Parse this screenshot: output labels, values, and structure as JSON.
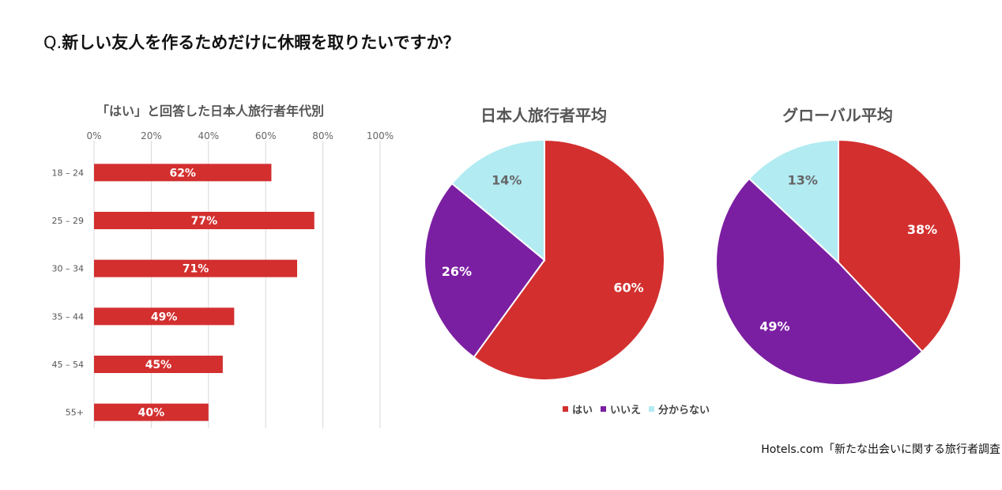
{
  "question": {
    "prefix": "Q.",
    "text": "新しい友人を作るためだけに休暇を取りたいですか？"
  },
  "colors": {
    "yes": "#d32f2f",
    "no": "#7b1fa2",
    "unknown": "#b2ebf2",
    "grid": "#d9d9d9",
    "tick": "#666666"
  },
  "legend": [
    {
      "label": "はい",
      "color": "#d32f2f"
    },
    {
      "label": "いいえ",
      "color": "#7b1fa2"
    },
    {
      "label": "分からない",
      "color": "#b2ebf2"
    }
  ],
  "source": "Hotels.com「新たな出会いに関する旅行者調査",
  "chart_data": [
    {
      "type": "bar",
      "orientation": "horizontal",
      "title": "「はい」と回答した日本人旅行者年代別",
      "categories": [
        "18 – 24",
        "25 – 29",
        "30 – 34",
        "35 – 44",
        "45 – 54",
        "55+"
      ],
      "values": [
        62,
        77,
        71,
        49,
        45,
        40
      ],
      "value_labels": [
        "62%",
        "77%",
        "71%",
        "49%",
        "45%",
        "40%"
      ],
      "xlim": [
        0,
        100
      ],
      "ticks": [
        0,
        20,
        40,
        60,
        80,
        100
      ],
      "tick_labels": [
        "0%",
        "20%",
        "40%",
        "60%",
        "80%",
        "100%"
      ],
      "grid": true,
      "series_color": "#d32f2f"
    },
    {
      "type": "pie",
      "title": "日本人旅行者平均",
      "labels": [
        "はい",
        "いいえ",
        "分からない"
      ],
      "values": [
        60,
        26,
        14
      ],
      "value_labels": [
        "60%",
        "26%",
        "14%"
      ],
      "colors": [
        "#d32f2f",
        "#7b1fa2",
        "#b2ebf2"
      ]
    },
    {
      "type": "pie",
      "title": "グローバル平均",
      "labels": [
        "はい",
        "いいえ",
        "分からない"
      ],
      "values": [
        38,
        49,
        13
      ],
      "value_labels": [
        "38%",
        "49%",
        "13%"
      ],
      "colors": [
        "#d32f2f",
        "#7b1fa2",
        "#b2ebf2"
      ]
    }
  ]
}
